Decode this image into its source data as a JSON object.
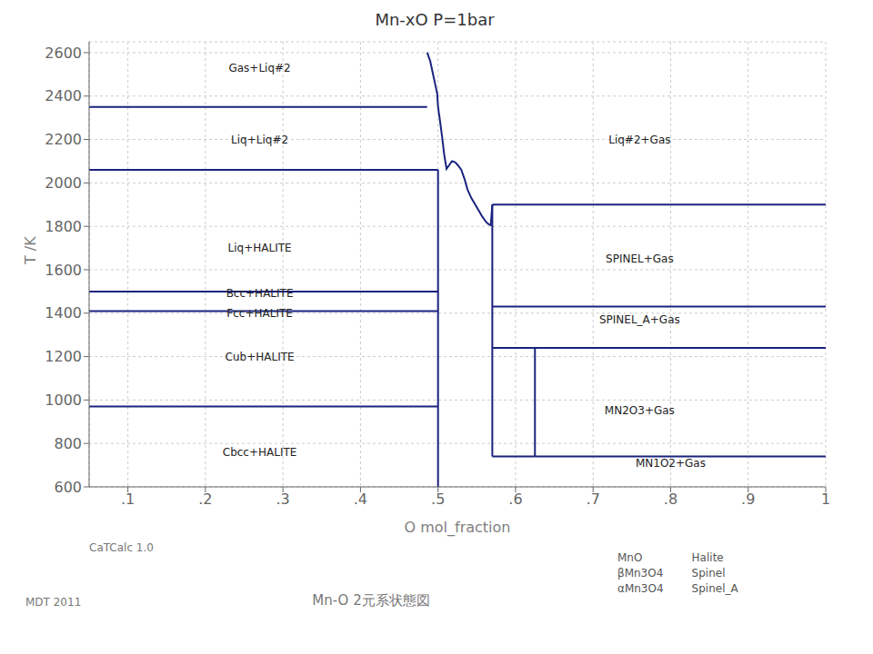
{
  "chart_data": {
    "type": "line",
    "title": "Mn-xO    P=1bar",
    "xlabel": "O mol_fraction",
    "ylabel": "T /K",
    "xlim": [
      0.05,
      1.0
    ],
    "ylim": [
      600,
      2650
    ],
    "xticks": [
      {
        "value": 0.1,
        "label": ".1"
      },
      {
        "value": 0.2,
        "label": ".2"
      },
      {
        "value": 0.3,
        "label": ".3"
      },
      {
        "value": 0.4,
        "label": ".4"
      },
      {
        "value": 0.5,
        "label": ".5"
      },
      {
        "value": 0.6,
        "label": ".6"
      },
      {
        "value": 0.7,
        "label": ".7"
      },
      {
        "value": 0.8,
        "label": ".8"
      },
      {
        "value": 0.9,
        "label": ".9"
      },
      {
        "value": 1.0,
        "label": "1"
      }
    ],
    "yticks": [
      600,
      800,
      1000,
      1200,
      1400,
      1600,
      1800,
      2000,
      2200,
      2400,
      2600
    ],
    "grid": true,
    "color": "#1a237e",
    "series": [
      {
        "x": [
          0.05,
          0.486
        ],
        "values": [
          2350,
          2350
        ]
      },
      {
        "x": [
          0.05,
          0.5
        ],
        "values": [
          2060,
          2060
        ]
      },
      {
        "x": [
          0.05,
          0.5
        ],
        "values": [
          1500,
          1500
        ]
      },
      {
        "x": [
          0.05,
          0.5
        ],
        "values": [
          1410,
          1410
        ]
      },
      {
        "x": [
          0.05,
          0.5
        ],
        "values": [
          970,
          970
        ]
      },
      {
        "x": [
          0.57,
          1.0
        ],
        "values": [
          1900,
          1900
        ]
      },
      {
        "x": [
          0.57,
          1.0
        ],
        "values": [
          1430,
          1430
        ]
      },
      {
        "x": [
          0.57,
          1.0
        ],
        "values": [
          1240,
          1240
        ]
      },
      {
        "x": [
          0.625,
          1.0
        ],
        "values": [
          740,
          740
        ]
      },
      {
        "x": [
          0.57,
          0.625
        ],
        "values": [
          740,
          740
        ]
      },
      {
        "x": [
          0.5,
          0.5
        ],
        "values": [
          600,
          2060
        ]
      },
      {
        "x": [
          0.57,
          0.57
        ],
        "values": [
          740,
          1900
        ]
      },
      {
        "x": [
          0.625,
          0.625
        ],
        "values": [
          740,
          1240
        ]
      },
      {
        "x": [
          0.486,
          0.49,
          0.493,
          0.496,
          0.499,
          0.5,
          0.502,
          0.505,
          0.508,
          0.511,
          0.514,
          0.518,
          0.522,
          0.526,
          0.53,
          0.534,
          0.538,
          0.543,
          0.548,
          0.553,
          0.557,
          0.56,
          0.562,
          0.565,
          0.568,
          0.57
        ],
        "values": [
          2600,
          2560,
          2510,
          2460,
          2410,
          2350,
          2300,
          2220,
          2130,
          2065,
          2080,
          2100,
          2095,
          2080,
          2060,
          2020,
          1970,
          1930,
          1900,
          1870,
          1845,
          1830,
          1820,
          1810,
          1805,
          1900
        ]
      }
    ],
    "annotations": [
      {
        "text": "Gas+Liq#2",
        "x": 0.27,
        "y": 2530
      },
      {
        "text": "Liq+Liq#2",
        "x": 0.27,
        "y": 2200
      },
      {
        "text": "Liq+HALITE",
        "x": 0.27,
        "y": 1700
      },
      {
        "text": "Bcc+HALITE",
        "x": 0.27,
        "y": 1490
      },
      {
        "text": "Fcc+HALITE",
        "x": 0.27,
        "y": 1400
      },
      {
        "text": "Cub+HALITE",
        "x": 0.27,
        "y": 1200
      },
      {
        "text": "Cbcc+HALITE",
        "x": 0.27,
        "y": 760
      },
      {
        "text": "Liq#2+Gas",
        "x": 0.76,
        "y": 2200
      },
      {
        "text": "SPINEL+Gas",
        "x": 0.76,
        "y": 1650
      },
      {
        "text": "SPINEL_A+Gas",
        "x": 0.76,
        "y": 1370
      },
      {
        "text": "MN2O3+Gas",
        "x": 0.76,
        "y": 950
      },
      {
        "text": "MN1O2+Gas",
        "x": 0.8,
        "y": 710
      }
    ],
    "footer": {
      "note": "CaTCalc 1.0",
      "left": "MDT  2011",
      "center": "Mn-O 2元系状態図",
      "table": [
        [
          "MnO",
          "Halite"
        ],
        [
          "βMn3O4",
          "Spinel"
        ],
        [
          "αMn3O4",
          "Spinel_A"
        ]
      ]
    }
  }
}
